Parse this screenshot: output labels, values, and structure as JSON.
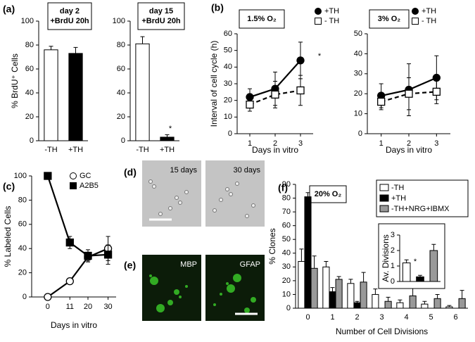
{
  "chart_data": [
    {
      "type": "bar",
      "panel": "(a)",
      "title": [
        "day 2",
        "+BrdU 20h"
      ],
      "ylabel": "% BrdU⁺ Cells",
      "categories": [
        "-TH",
        "+TH"
      ],
      "values": [
        76,
        73
      ],
      "errors": [
        3,
        5
      ],
      "colors": [
        "#ffffff",
        "#000000"
      ],
      "ylim": [
        0,
        100
      ],
      "yticks": [
        0,
        20,
        40,
        60,
        80,
        100
      ]
    },
    {
      "type": "bar",
      "title": [
        "day 15",
        "+BrdU 20h"
      ],
      "categories": [
        "-TH",
        "+TH"
      ],
      "values": [
        81,
        3
      ],
      "errors": [
        6,
        2
      ],
      "colors": [
        "#ffffff",
        "#000000"
      ],
      "ylim": [
        0,
        100
      ],
      "yticks": [
        0,
        20,
        40,
        60,
        80,
        100
      ],
      "annotation": "*"
    },
    {
      "type": "line",
      "panel": "(b)",
      "title": [
        "1.5% O₂"
      ],
      "ylabel": "Interval  of cell cycle (h)",
      "xlabel": "Days in vitro",
      "x": [
        1,
        2,
        3
      ],
      "xlim": [
        0.5,
        3.5
      ],
      "xticks": [
        1,
        2,
        3
      ],
      "ylim": [
        0,
        60
      ],
      "yticks": [
        0,
        10,
        20,
        30,
        40,
        50,
        60
      ],
      "series": [
        {
          "name": "+TH",
          "color": "#000000",
          "fill": "#000000",
          "marker": "circle",
          "dashed": false,
          "values": [
            22,
            27,
            44
          ],
          "errors": [
            5,
            10,
            11
          ]
        },
        {
          "name": "- TH",
          "color": "#000000",
          "fill": "#ffffff",
          "marker": "square",
          "dashed": true,
          "values": [
            17.5,
            23.5,
            26
          ],
          "errors": [
            4,
            8,
            9
          ]
        }
      ],
      "annotation": "*"
    },
    {
      "type": "line",
      "title": [
        "3% O₂"
      ],
      "xlabel": "Days in vitro",
      "x": [
        1,
        2,
        3
      ],
      "xlim": [
        0.5,
        3.5
      ],
      "xticks": [
        1,
        2,
        3
      ],
      "ylim": [
        0,
        50
      ],
      "yticks": [
        0,
        10,
        20,
        30,
        40,
        50
      ],
      "series": [
        {
          "name": "+TH",
          "color": "#000000",
          "fill": "#000000",
          "marker": "circle",
          "dashed": false,
          "values": [
            19,
            22,
            28
          ],
          "errors": [
            6,
            13,
            11
          ]
        },
        {
          "name": "- TH",
          "color": "#000000",
          "fill": "#ffffff",
          "marker": "square",
          "dashed": true,
          "values": [
            16,
            20,
            21
          ],
          "errors": [
            4,
            8,
            6
          ]
        }
      ]
    },
    {
      "type": "line",
      "panel": "(c)",
      "ylabel": "% Labeled Cells",
      "xlabel": "Days in vitro",
      "x": [
        0,
        11,
        20,
        30
      ],
      "xlim": [
        -8,
        34
      ],
      "xticks": [
        0,
        11,
        20,
        30
      ],
      "ylim": [
        0,
        100
      ],
      "yticks": [
        0,
        20,
        40,
        60,
        80,
        100
      ],
      "series": [
        {
          "name": "GC",
          "color": "#000000",
          "fill": "#ffffff",
          "marker": "circle",
          "dashed": false,
          "values": [
            0,
            13,
            33,
            40
          ],
          "errors": [
            0,
            1,
            4,
            10
          ]
        },
        {
          "name": "A2B5",
          "color": "#000000",
          "fill": "#000000",
          "marker": "square",
          "dashed": false,
          "values": [
            100,
            45,
            34,
            35
          ],
          "errors": [
            0,
            5,
            5,
            8
          ]
        }
      ]
    },
    {
      "type": "image",
      "panel": "(d)",
      "color": "#c4c4c4",
      "labels": [
        "15 days",
        "30 days"
      ]
    },
    {
      "type": "image",
      "panel": "(e)",
      "color": "#0c1c09",
      "labels": [
        "MBP",
        "GFAP"
      ]
    },
    {
      "type": "bar",
      "panel": "(f)",
      "title": [
        "20% O₂"
      ],
      "ylabel": "% Clones",
      "xlabel": "Number of Cell Divisions",
      "categories": [
        "0",
        "1",
        "2",
        "3",
        "4",
        "5",
        "6"
      ],
      "ylim": [
        0,
        90
      ],
      "yticks": [
        0,
        10,
        20,
        30,
        40,
        50,
        60,
        70,
        80,
        90
      ],
      "series": [
        {
          "name": "-TH",
          "color": "#ffffff",
          "values": [
            34,
            30,
            18,
            10,
            4,
            3,
            1
          ],
          "errors": [
            9,
            4,
            3,
            4,
            2,
            2,
            1
          ]
        },
        {
          "name": "+TH",
          "color": "#000000",
          "values": [
            81,
            12,
            4,
            0,
            0,
            0,
            0
          ],
          "errors": [
            3,
            3,
            1,
            0,
            0,
            0,
            0
          ]
        },
        {
          "name": "-TH+NRG+IBMX",
          "color": "#999999",
          "values": [
            29,
            21,
            19,
            5,
            9,
            7,
            7
          ],
          "errors": [
            9,
            2,
            7,
            3,
            6,
            3,
            6
          ]
        }
      ]
    },
    {
      "type": "bar",
      "ylabel": "Av. Divisions",
      "categories": [
        null,
        null,
        null
      ],
      "values": [
        1.2,
        0.3,
        2.0
      ],
      "errors": [
        0.2,
        0.1,
        0.4
      ],
      "colors": [
        "#ffffff",
        "#000000",
        "#999999"
      ],
      "ylim": [
        0,
        3
      ],
      "yticks": [
        0,
        1,
        2,
        3
      ],
      "annotation": "*"
    }
  ]
}
